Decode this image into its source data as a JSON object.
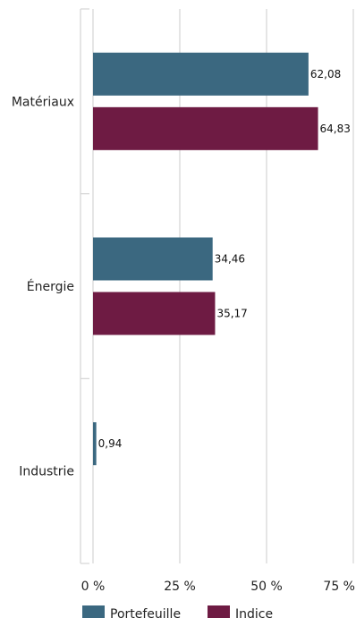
{
  "chart_data": {
    "type": "bar",
    "orientation": "horizontal",
    "categories": [
      "Matériaux",
      "Énergie",
      "Industrie"
    ],
    "series": [
      {
        "name": "Portefeuille",
        "color": "#3b6880",
        "values": [
          62.08,
          34.46,
          0.94
        ],
        "labels": [
          "62,08",
          "34,46",
          "0,94"
        ]
      },
      {
        "name": "Indice",
        "color": "#6e1b43",
        "values": [
          64.83,
          35.17,
          null
        ],
        "labels": [
          "64,83",
          "35,17",
          ""
        ]
      }
    ],
    "xlim": [
      0,
      75
    ],
    "ticks": [
      0,
      25,
      50,
      75
    ],
    "tick_labels": [
      "0 %",
      "25 %",
      "50 %",
      "75 %"
    ],
    "grid": true,
    "legend": "bottom",
    "title": "",
    "xlabel": "",
    "ylabel": ""
  }
}
